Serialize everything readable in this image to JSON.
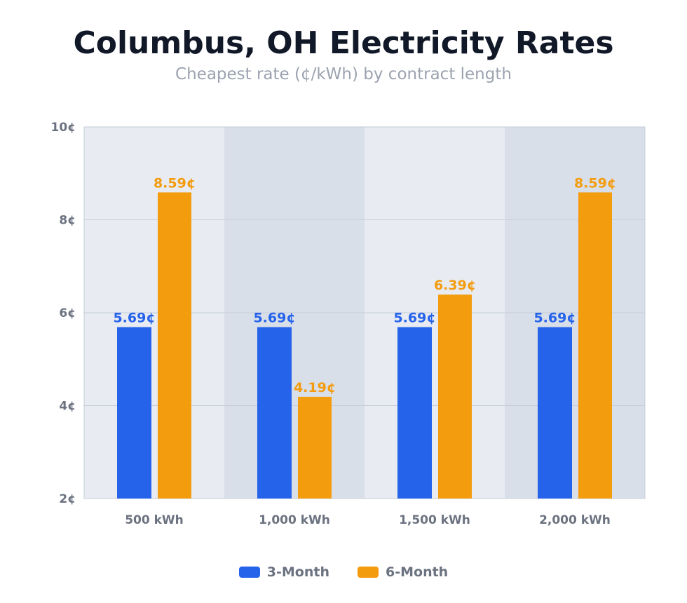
{
  "chart_data": {
    "type": "bar",
    "title": "Columbus, OH Electricity Rates",
    "subtitle": "Cheapest rate (¢/kWh) by contract length",
    "categories": [
      "500 kWh",
      "1,000 kWh",
      "1,500 kWh",
      "2,000 kWh"
    ],
    "series": [
      {
        "name": "3-Month",
        "values": [
          5.69,
          5.69,
          5.69,
          5.69
        ],
        "color": "#2563eb"
      },
      {
        "name": "6-Month",
        "values": [
          8.59,
          4.19,
          6.39,
          8.59
        ],
        "color": "#f39c0e"
      }
    ],
    "value_suffix": "¢",
    "ylim": [
      2,
      10
    ],
    "yticks": [
      2,
      4,
      6,
      8,
      10
    ],
    "ytick_labels": [
      "2¢",
      "4¢",
      "6¢",
      "8¢",
      "10¢"
    ],
    "grid": true,
    "band_colors": [
      "#e8ebf1",
      "#d9dfe8"
    ],
    "legend": "bottom"
  }
}
